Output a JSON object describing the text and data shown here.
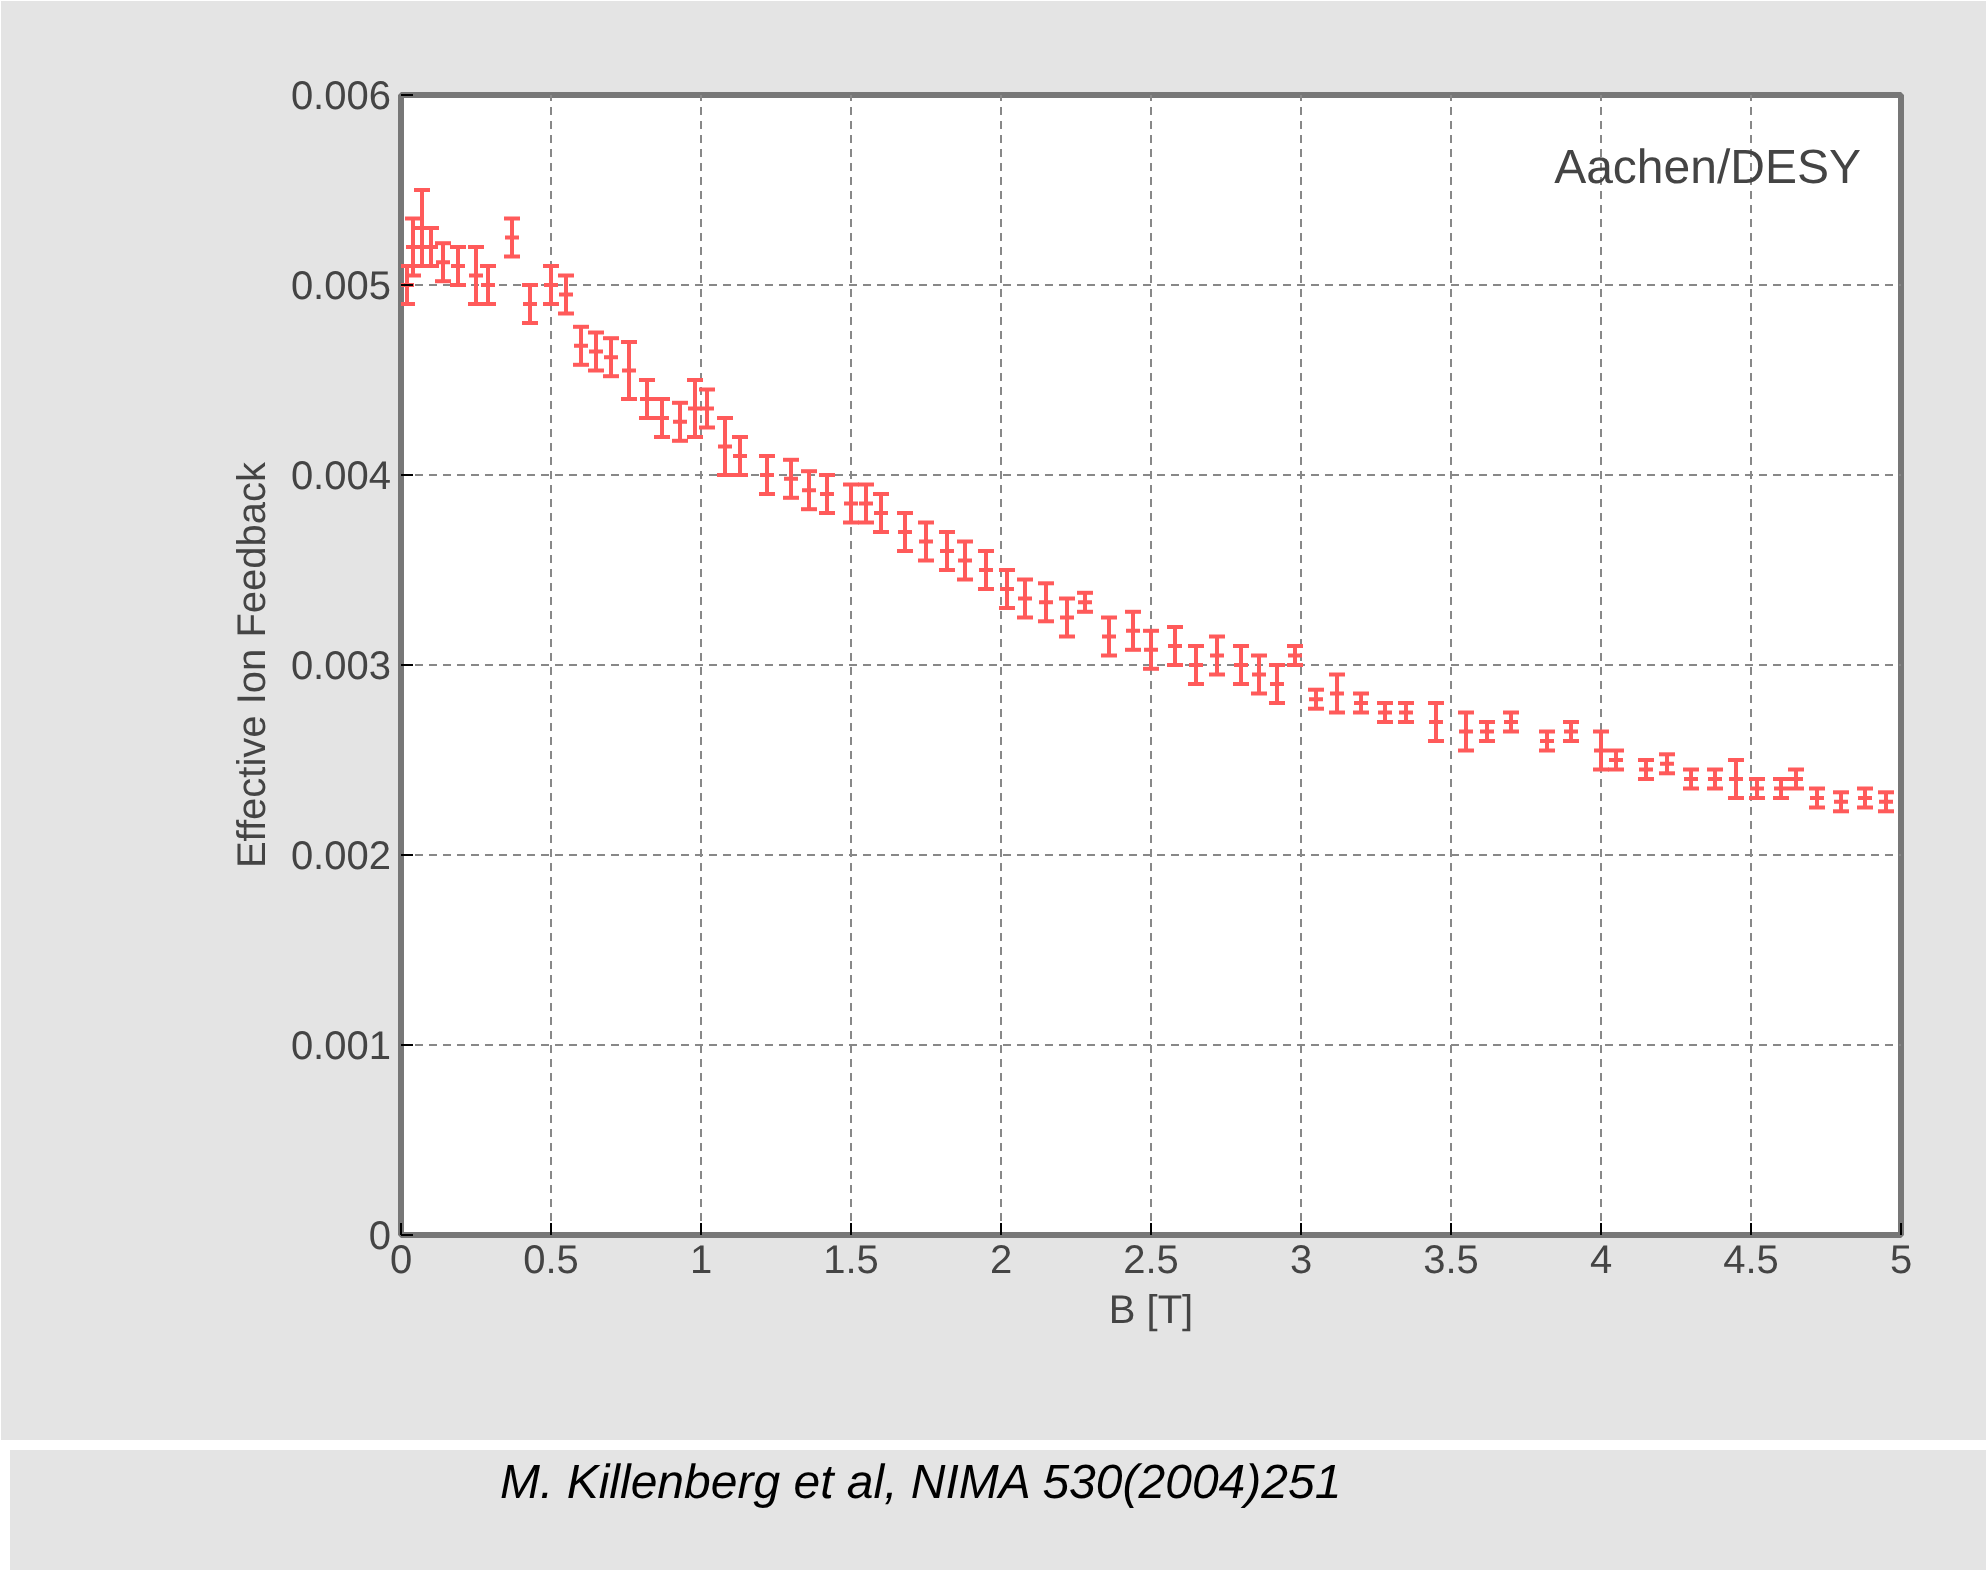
{
  "chart_data": {
    "type": "scatter",
    "xlabel": "B [T]",
    "ylabel": "Effective Ion Feedback",
    "annotations": [
      "Aachen/DESY",
      "M. Killenberg et al, NIMA 530(2004)251"
    ],
    "xlim": [
      0,
      5
    ],
    "ylim": [
      0,
      0.006
    ],
    "xticks": [
      0,
      0.5,
      1,
      1.5,
      2,
      2.5,
      3,
      3.5,
      4,
      4.5,
      5
    ],
    "yticks": [
      0,
      0.001,
      0.002,
      0.003,
      0.004,
      0.005,
      0.006
    ],
    "grid": true,
    "marker": "cross",
    "x": [
      0.02,
      0.04,
      0.07,
      0.1,
      0.14,
      0.19,
      0.25,
      0.29,
      0.37,
      0.43,
      0.5,
      0.55,
      0.6,
      0.65,
      0.7,
      0.76,
      0.82,
      0.87,
      0.93,
      0.98,
      1.02,
      1.08,
      1.13,
      1.22,
      1.3,
      1.36,
      1.42,
      1.5,
      1.55,
      1.6,
      1.68,
      1.75,
      1.82,
      1.88,
      1.95,
      2.02,
      2.08,
      2.15,
      2.22,
      2.28,
      2.36,
      2.44,
      2.5,
      2.58,
      2.65,
      2.72,
      2.8,
      2.86,
      2.92,
      2.98,
      3.05,
      3.12,
      3.2,
      3.28,
      3.35,
      3.45,
      3.55,
      3.62,
      3.7,
      3.82,
      3.9,
      4.0,
      4.05,
      4.15,
      4.22,
      4.3,
      4.38,
      4.45,
      4.52,
      4.6,
      4.65,
      4.72,
      4.8,
      4.88,
      4.95
    ],
    "series": [
      {
        "color": "#ff5a5a",
        "values": [
          0.005,
          0.0052,
          0.0053,
          0.0052,
          0.00512,
          0.0051,
          0.00505,
          0.005,
          0.00525,
          0.0049,
          0.005,
          0.00495,
          0.00468,
          0.00465,
          0.00462,
          0.00455,
          0.0044,
          0.0043,
          0.00428,
          0.00435,
          0.00435,
          0.00415,
          0.0041,
          0.004,
          0.00398,
          0.00392,
          0.0039,
          0.00385,
          0.00385,
          0.0038,
          0.0037,
          0.00365,
          0.0036,
          0.00355,
          0.0035,
          0.0034,
          0.00335,
          0.00333,
          0.00325,
          0.00333,
          0.00315,
          0.00318,
          0.00308,
          0.0031,
          0.003,
          0.00305,
          0.003,
          0.00295,
          0.0029,
          0.00305,
          0.00282,
          0.00285,
          0.0028,
          0.00275,
          0.00275,
          0.0027,
          0.00265,
          0.00265,
          0.0027,
          0.0026,
          0.00265,
          0.00255,
          0.0025,
          0.00245,
          0.00248,
          0.0024,
          0.0024,
          0.0024,
          0.00235,
          0.00235,
          0.0024,
          0.0023,
          0.00228,
          0.0023,
          0.00228
        ],
        "errors": [
          0.0001,
          0.00015,
          0.0002,
          0.0001,
          0.0001,
          0.0001,
          0.00015,
          0.0001,
          0.0001,
          0.0001,
          0.0001,
          0.0001,
          0.0001,
          0.0001,
          0.0001,
          0.00015,
          0.0001,
          0.0001,
          0.0001,
          0.00015,
          0.0001,
          0.00015,
          0.0001,
          0.0001,
          0.0001,
          0.0001,
          0.0001,
          0.0001,
          0.0001,
          0.0001,
          0.0001,
          0.0001,
          0.0001,
          0.0001,
          0.0001,
          0.0001,
          0.0001,
          0.0001,
          0.0001,
          5e-05,
          0.0001,
          0.0001,
          0.0001,
          0.0001,
          0.0001,
          0.0001,
          0.0001,
          0.0001,
          0.0001,
          5e-05,
          5e-05,
          0.0001,
          5e-05,
          5e-05,
          5e-05,
          0.0001,
          0.0001,
          5e-05,
          5e-05,
          5e-05,
          5e-05,
          0.0001,
          5e-05,
          5e-05,
          5e-05,
          5e-05,
          5e-05,
          0.0001,
          5e-05,
          5e-05,
          5e-05,
          5e-05,
          5e-05,
          5e-05,
          5e-05
        ]
      }
    ]
  }
}
